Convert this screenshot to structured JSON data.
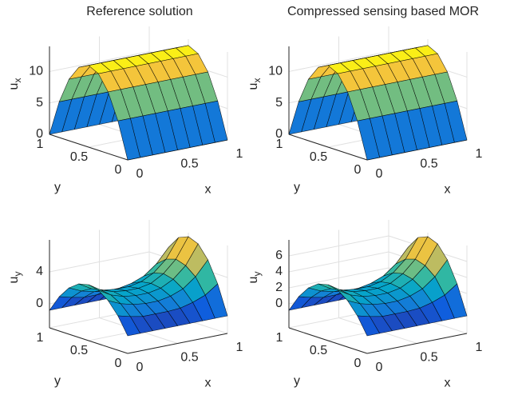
{
  "chart_data": [
    {
      "type": "surface",
      "title": "Reference solution",
      "xlabel": "x",
      "ylabel": "y",
      "zlabel": {
        "text": "u",
        "subscript": "x"
      },
      "x": [
        0,
        0.125,
        0.25,
        0.375,
        0.5,
        0.625,
        0.75,
        0.875,
        1
      ],
      "y": [
        0,
        0.125,
        0.25,
        0.375,
        0.5,
        0.625,
        0.75,
        0.875,
        1
      ],
      "z": [
        [
          0,
          0,
          0,
          0,
          0,
          0,
          0,
          0,
          0
        ],
        [
          5.7,
          5.7,
          5.7,
          5.7,
          5.7,
          5.7,
          5.7,
          5.7,
          5.7
        ],
        [
          9.8,
          9.8,
          9.8,
          9.8,
          9.8,
          9.8,
          9.8,
          9.8,
          9.8
        ],
        [
          12.2,
          12.2,
          12.2,
          12.2,
          12.2,
          12.2,
          12.2,
          12.2,
          12.2
        ],
        [
          13,
          13,
          13,
          13,
          13,
          13,
          13,
          13,
          13
        ],
        [
          12.2,
          12.2,
          12.2,
          12.2,
          12.2,
          12.2,
          12.2,
          12.2,
          12.2
        ],
        [
          9.8,
          9.8,
          9.8,
          9.8,
          9.8,
          9.8,
          9.8,
          9.8,
          9.8
        ],
        [
          5.7,
          5.7,
          5.7,
          5.7,
          5.7,
          5.7,
          5.7,
          5.7,
          5.7
        ],
        [
          0,
          0,
          0,
          0,
          0,
          0,
          0,
          0,
          0
        ]
      ],
      "xlim": [
        0,
        1
      ],
      "ylim": [
        0,
        1
      ],
      "zlim": [
        0,
        14
      ],
      "xticks": [
        0,
        0.5,
        1
      ],
      "yticks": [
        0,
        0.5,
        1
      ],
      "zticks": [
        0,
        5,
        10
      ],
      "grid": true,
      "colormap": "parula"
    },
    {
      "type": "surface",
      "title": "Compressed sensing based MOR",
      "xlabel": "x",
      "ylabel": "y",
      "zlabel": {
        "text": "u",
        "subscript": "x"
      },
      "x": [
        0,
        0.125,
        0.25,
        0.375,
        0.5,
        0.625,
        0.75,
        0.875,
        1
      ],
      "y": [
        0,
        0.125,
        0.25,
        0.375,
        0.5,
        0.625,
        0.75,
        0.875,
        1
      ],
      "z": [
        [
          0,
          0,
          0,
          0,
          0,
          0,
          0,
          0,
          0
        ],
        [
          5.7,
          5.7,
          5.7,
          5.7,
          5.7,
          5.7,
          5.7,
          5.7,
          5.7
        ],
        [
          9.8,
          9.8,
          9.8,
          9.8,
          9.8,
          9.8,
          9.8,
          9.8,
          9.8
        ],
        [
          12.2,
          12.2,
          12.2,
          12.2,
          12.2,
          12.2,
          12.2,
          12.2,
          12.2
        ],
        [
          13,
          13,
          13,
          13,
          13,
          13,
          13,
          13,
          13
        ],
        [
          12.2,
          12.2,
          12.2,
          12.2,
          12.2,
          12.2,
          12.2,
          12.2,
          12.2
        ],
        [
          9.8,
          9.8,
          9.8,
          9.8,
          9.8,
          9.8,
          9.8,
          9.8,
          9.8
        ],
        [
          5.7,
          5.7,
          5.7,
          5.7,
          5.7,
          5.7,
          5.7,
          5.7,
          5.7
        ],
        [
          0,
          0,
          0,
          0,
          0,
          0,
          0,
          0,
          0
        ]
      ],
      "xlim": [
        0,
        1
      ],
      "ylim": [
        0,
        1
      ],
      "zlim": [
        0,
        14
      ],
      "xticks": [
        0,
        0.5,
        1
      ],
      "yticks": [
        0,
        0.5,
        1
      ],
      "zticks": [
        0,
        5,
        10
      ],
      "grid": true,
      "colormap": "parula"
    },
    {
      "type": "surface",
      "xlabel": "x",
      "ylabel": "y",
      "zlabel": {
        "text": "u",
        "subscript": "y"
      },
      "x": [
        0,
        0.125,
        0.25,
        0.375,
        0.5,
        0.625,
        0.75,
        0.875,
        1
      ],
      "y": [
        0,
        0.125,
        0.25,
        0.375,
        0.5,
        0.625,
        0.75,
        0.875,
        1
      ],
      "z": [
        [
          -0.8,
          -0.8,
          -0.8,
          -0.8,
          -0.8,
          -0.8,
          -0.8,
          -0.8,
          -0.8
        ],
        [
          1.3,
          0.9,
          0.6,
          0.6,
          0.6,
          0.7,
          1.1,
          1.7,
          2.8
        ],
        [
          2.8,
          2.1,
          1.7,
          1.5,
          1.5,
          1.8,
          2.4,
          3.6,
          5.4
        ],
        [
          3.7,
          2.8,
          2.3,
          2.1,
          2.1,
          2.4,
          3.2,
          4.6,
          7
        ],
        [
          4,
          3,
          2.5,
          2.3,
          2.3,
          2.6,
          3.5,
          5,
          7.5
        ],
        [
          3.7,
          2.8,
          2.3,
          2.1,
          2.1,
          2.4,
          3.2,
          4.6,
          7
        ],
        [
          2.8,
          2.1,
          1.7,
          1.5,
          1.5,
          1.8,
          2.4,
          3.6,
          5.4
        ],
        [
          1.3,
          0.9,
          0.6,
          0.6,
          0.6,
          0.7,
          1.1,
          1.7,
          2.8
        ],
        [
          -0.8,
          -0.8,
          -0.8,
          -0.8,
          -0.8,
          -0.8,
          -0.8,
          -0.8,
          -0.8
        ]
      ],
      "xlim": [
        0,
        1
      ],
      "ylim": [
        0,
        1
      ],
      "zlim": [
        -3,
        8
      ],
      "xticks": [
        0,
        0.5,
        1
      ],
      "yticks": [
        0,
        0.5,
        1
      ],
      "zticks": [
        0,
        4
      ],
      "grid": true,
      "colormap": "parula"
    },
    {
      "type": "surface",
      "xlabel": "x",
      "ylabel": "y",
      "zlabel": {
        "text": "u",
        "subscript": "y"
      },
      "x": [
        0,
        0.125,
        0.25,
        0.375,
        0.5,
        0.625,
        0.75,
        0.875,
        1
      ],
      "y": [
        0,
        0.125,
        0.25,
        0.375,
        0.5,
        0.625,
        0.75,
        0.875,
        1
      ],
      "z": [
        [
          -0.8,
          -0.8,
          -0.8,
          -0.8,
          -0.8,
          -0.8,
          -0.8,
          -0.8,
          -0.8
        ],
        [
          1.3,
          0.9,
          0.6,
          0.6,
          0.6,
          0.7,
          1.1,
          1.7,
          2.8
        ],
        [
          2.8,
          2.1,
          1.7,
          1.5,
          1.5,
          1.8,
          2.4,
          3.6,
          5.4
        ],
        [
          3.7,
          2.8,
          2.3,
          2.1,
          2.1,
          2.4,
          3.2,
          4.6,
          7
        ],
        [
          4,
          3,
          2.5,
          2.3,
          2.3,
          2.6,
          3.5,
          5,
          7.5
        ],
        [
          3.7,
          2.8,
          2.3,
          2.1,
          2.1,
          2.4,
          3.2,
          4.6,
          7
        ],
        [
          2.8,
          2.1,
          1.7,
          1.5,
          1.5,
          1.8,
          2.4,
          3.6,
          5.4
        ],
        [
          1.3,
          0.9,
          0.6,
          0.6,
          0.6,
          0.7,
          1.1,
          1.7,
          2.8
        ],
        [
          -0.8,
          -0.8,
          -0.8,
          -0.8,
          -0.8,
          -0.8,
          -0.8,
          -0.8,
          -0.8
        ]
      ],
      "xlim": [
        0,
        1
      ],
      "ylim": [
        0,
        1
      ],
      "zlim": [
        -3,
        8
      ],
      "xticks": [
        0,
        0.5,
        1
      ],
      "yticks": [
        0,
        0.5,
        1
      ],
      "zticks": [
        0,
        2,
        4,
        6
      ],
      "grid": true,
      "colormap": "parula"
    }
  ]
}
